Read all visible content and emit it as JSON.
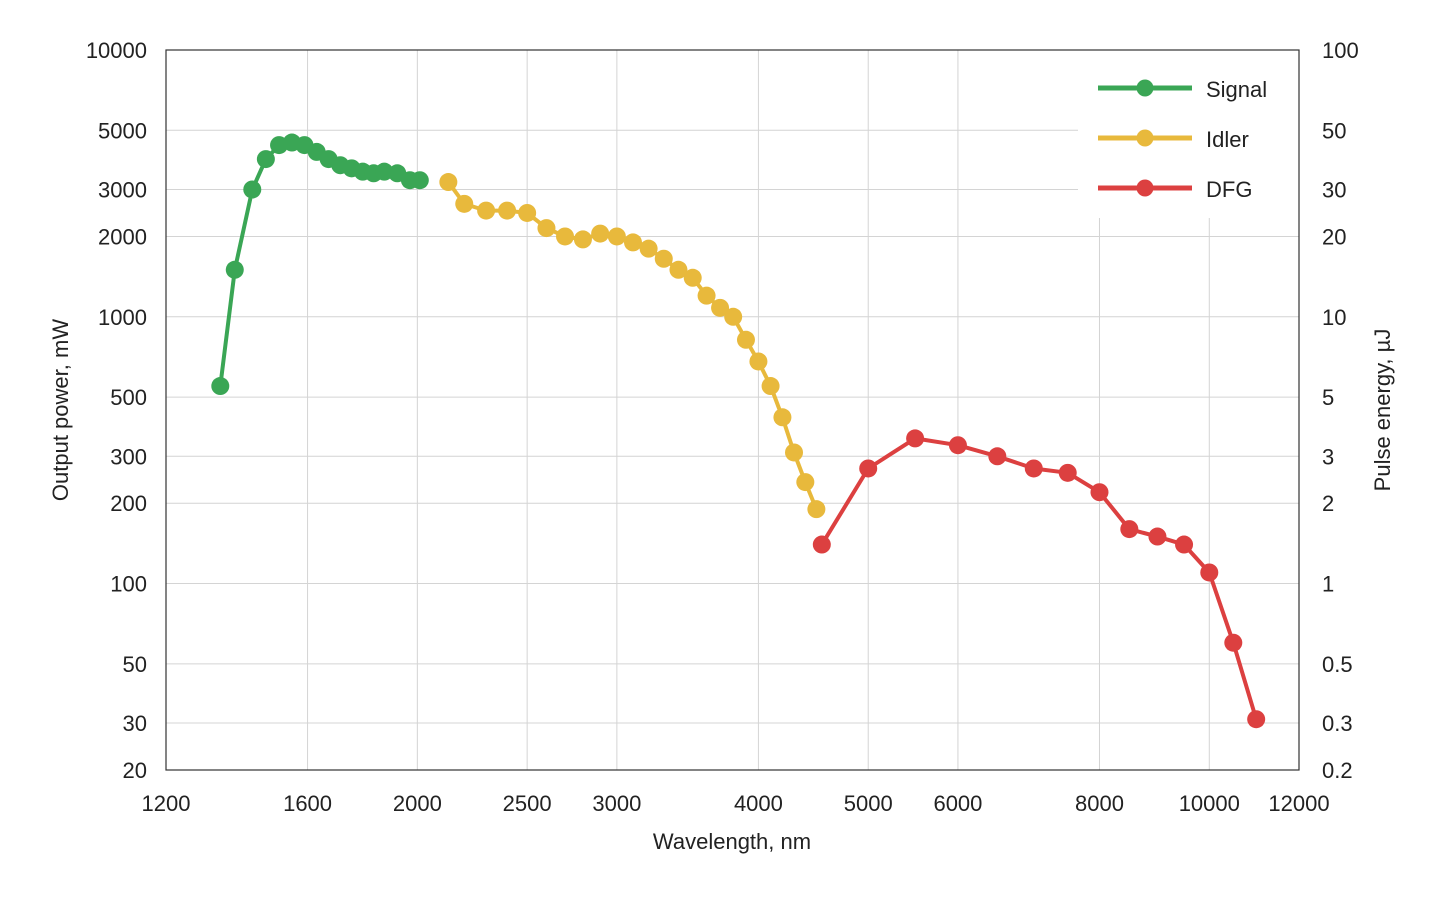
{
  "chart_data": {
    "type": "line",
    "xlabel": "Wavelength, nm",
    "ylabel": "Output power, mW",
    "y2label": "Pulse energy, µJ",
    "xscale": "log",
    "yscale": "log",
    "xlim": [
      1200,
      12000
    ],
    "ylim": [
      20,
      10000
    ],
    "y2lim": [
      0.2,
      100
    ],
    "grid": true,
    "legend_position": "top-right",
    "x_ticks": [
      1200,
      1600,
      2000,
      2500,
      3000,
      4000,
      5000,
      6000,
      8000,
      10000,
      12000
    ],
    "x_tick_labels": [
      "1200",
      "1600",
      "2000",
      "2500",
      "3000",
      "4000",
      "5000",
      "6000",
      "8000",
      "10000",
      "12000"
    ],
    "y_ticks": [
      20,
      30,
      50,
      100,
      200,
      300,
      500,
      1000,
      2000,
      3000,
      5000,
      10000
    ],
    "y_tick_labels": [
      "20",
      "30",
      "50",
      "100",
      "200",
      "300",
      "500",
      "1000",
      "2000",
      "3000",
      "5000",
      "10000"
    ],
    "y2_tick_labels": [
      "0.2",
      "0.3",
      "0.5",
      "1",
      "2",
      "3",
      "5",
      "10",
      "20",
      "30",
      "50",
      "100"
    ],
    "series": [
      {
        "name": "Signal",
        "color": "#3aa655",
        "x": [
          1340,
          1380,
          1430,
          1470,
          1510,
          1550,
          1590,
          1630,
          1670,
          1710,
          1750,
          1790,
          1830,
          1870,
          1920,
          1970,
          2010
        ],
        "y": [
          550,
          1500,
          3000,
          3900,
          4400,
          4500,
          4400,
          4150,
          3900,
          3700,
          3600,
          3500,
          3450,
          3500,
          3450,
          3250,
          3250
        ]
      },
      {
        "name": "Idler",
        "color": "#e8b93c",
        "x": [
          2130,
          2200,
          2300,
          2400,
          2500,
          2600,
          2700,
          2800,
          2900,
          3000,
          3100,
          3200,
          3300,
          3400,
          3500,
          3600,
          3700,
          3800,
          3900,
          4000,
          4100,
          4200,
          4300,
          4400,
          4500
        ],
        "y": [
          3200,
          2650,
          2500,
          2500,
          2450,
          2150,
          2000,
          1950,
          2050,
          2000,
          1900,
          1800,
          1650,
          1500,
          1400,
          1200,
          1080,
          1000,
          820,
          680,
          550,
          420,
          310,
          240,
          190
        ]
      },
      {
        "name": "DFG",
        "color": "#dc4040",
        "x": [
          4550,
          5000,
          5500,
          6000,
          6500,
          7000,
          7500,
          8000,
          8500,
          9000,
          9500,
          10000,
          10500,
          11000
        ],
        "y": [
          140,
          270,
          350,
          330,
          300,
          270,
          260,
          220,
          160,
          150,
          140,
          110,
          60,
          31
        ]
      }
    ]
  }
}
